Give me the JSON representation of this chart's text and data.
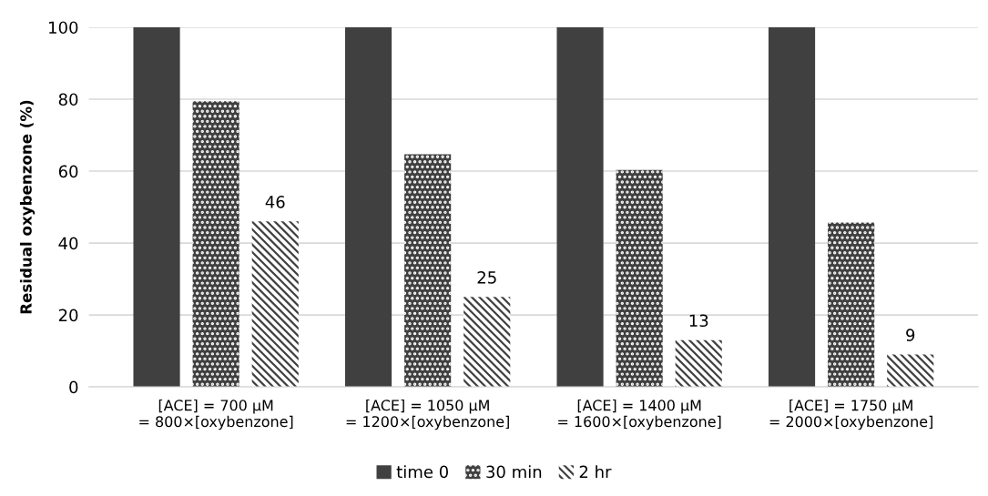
{
  "chart_data": {
    "type": "bar",
    "ylabel": "Residual oxybenzone (%)",
    "categories": [
      "[ACE] = 700 µM\n= 800×[oxybenzone]",
      "[ACE] = 1050 µM\n= 1200×[oxybenzone]",
      "[ACE] = 1400 µM\n= 1600×[oxybenzone]",
      "[ACE] = 1750 µM\n= 2000×[oxybenzone]"
    ],
    "series": [
      {
        "name": "time 0",
        "color": "#404040",
        "values": [
          100,
          100,
          100,
          100
        ]
      },
      {
        "name": "30 min",
        "color": "#404040",
        "values": [
          79.4,
          64.7,
          60.3,
          45.7
        ]
      },
      {
        "name": "2 hr",
        "color": "#404040",
        "values": [
          46,
          25,
          13,
          9
        ],
        "value_labels": [
          "46",
          "25",
          "13",
          "9"
        ]
      }
    ],
    "ylim": [
      0,
      100
    ],
    "yticks": [
      0,
      20,
      40,
      60,
      80,
      100
    ],
    "grid": "y",
    "legend": "bottom"
  }
}
